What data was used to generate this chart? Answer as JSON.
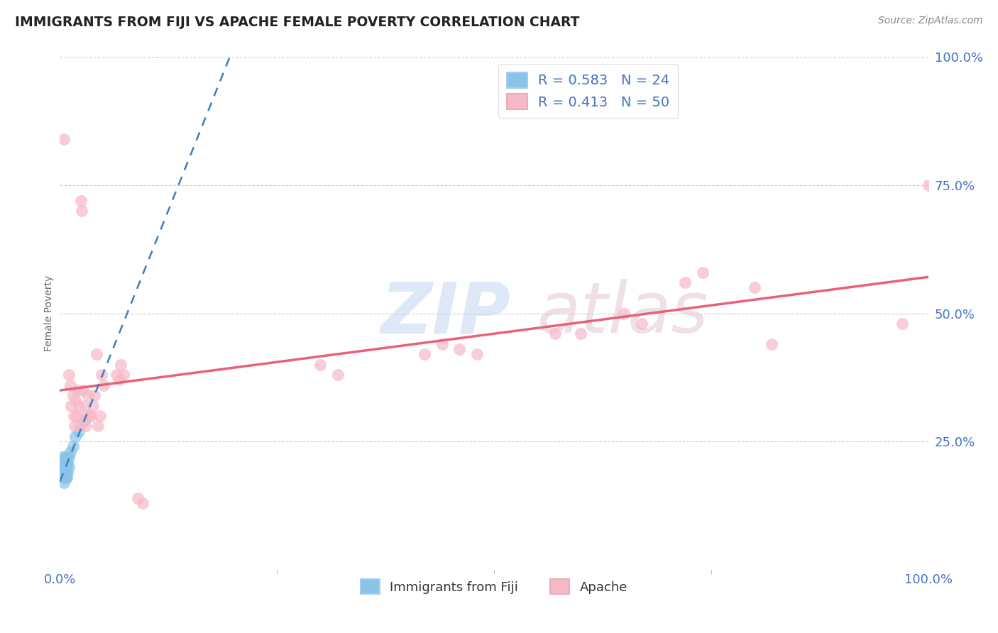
{
  "title": "IMMIGRANTS FROM FIJI VS APACHE FEMALE POVERTY CORRELATION CHART",
  "source": "Source: ZipAtlas.com",
  "ylabel": "Female Poverty",
  "fiji_color": "#89c4e8",
  "apache_color": "#f7b8c8",
  "fiji_line_color": "#3a7fbf",
  "apache_line_color": "#e8607a",
  "fiji_R": 0.583,
  "fiji_N": 24,
  "apache_R": 0.413,
  "apache_N": 50,
  "fiji_points": [
    [
      0.003,
      0.22
    ],
    [
      0.004,
      0.21
    ],
    [
      0.004,
      0.2
    ],
    [
      0.005,
      0.19
    ],
    [
      0.005,
      0.18
    ],
    [
      0.005,
      0.17
    ],
    [
      0.006,
      0.22
    ],
    [
      0.006,
      0.2
    ],
    [
      0.006,
      0.19
    ],
    [
      0.007,
      0.21
    ],
    [
      0.007,
      0.19
    ],
    [
      0.007,
      0.18
    ],
    [
      0.008,
      0.22
    ],
    [
      0.008,
      0.2
    ],
    [
      0.008,
      0.18
    ],
    [
      0.009,
      0.21
    ],
    [
      0.009,
      0.19
    ],
    [
      0.01,
      0.22
    ],
    [
      0.01,
      0.2
    ],
    [
      0.012,
      0.23
    ],
    [
      0.015,
      0.24
    ],
    [
      0.018,
      0.26
    ],
    [
      0.022,
      0.27
    ],
    [
      0.028,
      0.29
    ]
  ],
  "apache_points": [
    [
      0.005,
      0.84
    ],
    [
      0.01,
      0.38
    ],
    [
      0.012,
      0.36
    ],
    [
      0.013,
      0.32
    ],
    [
      0.015,
      0.34
    ],
    [
      0.016,
      0.3
    ],
    [
      0.017,
      0.28
    ],
    [
      0.018,
      0.33
    ],
    [
      0.019,
      0.3
    ],
    [
      0.02,
      0.35
    ],
    [
      0.022,
      0.32
    ],
    [
      0.023,
      0.28
    ],
    [
      0.024,
      0.72
    ],
    [
      0.025,
      0.7
    ],
    [
      0.027,
      0.35
    ],
    [
      0.028,
      0.32
    ],
    [
      0.029,
      0.3
    ],
    [
      0.03,
      0.28
    ],
    [
      0.032,
      0.34
    ],
    [
      0.034,
      0.3
    ],
    [
      0.036,
      0.3
    ],
    [
      0.038,
      0.32
    ],
    [
      0.04,
      0.34
    ],
    [
      0.042,
      0.42
    ],
    [
      0.044,
      0.28
    ],
    [
      0.046,
      0.3
    ],
    [
      0.048,
      0.38
    ],
    [
      0.05,
      0.36
    ],
    [
      0.065,
      0.38
    ],
    [
      0.068,
      0.37
    ],
    [
      0.07,
      0.4
    ],
    [
      0.073,
      0.38
    ],
    [
      0.09,
      0.14
    ],
    [
      0.095,
      0.13
    ],
    [
      0.3,
      0.4
    ],
    [
      0.32,
      0.38
    ],
    [
      0.42,
      0.42
    ],
    [
      0.44,
      0.44
    ],
    [
      0.46,
      0.43
    ],
    [
      0.48,
      0.42
    ],
    [
      0.57,
      0.46
    ],
    [
      0.6,
      0.46
    ],
    [
      0.65,
      0.5
    ],
    [
      0.67,
      0.48
    ],
    [
      0.72,
      0.56
    ],
    [
      0.74,
      0.58
    ],
    [
      0.8,
      0.55
    ],
    [
      0.82,
      0.44
    ],
    [
      0.97,
      0.48
    ],
    [
      1.0,
      0.75
    ]
  ],
  "grid_color": "#cccccc",
  "background_color": "#ffffff",
  "title_color": "#222222",
  "tick_color": "#4472c4",
  "legend_color": "#4472c4",
  "watermark_zip_color": "#c8daf0",
  "watermark_atlas_color": "#e0c8d0"
}
